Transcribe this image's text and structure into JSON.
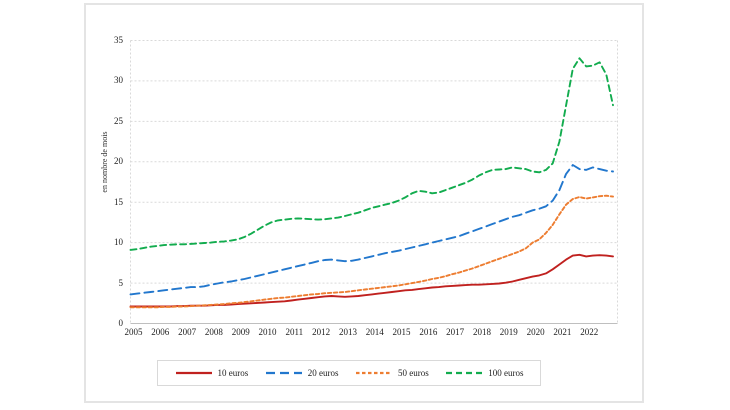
{
  "figure": {
    "ylabel": "en nombre de mois",
    "colors": {
      "grid": "#d9d9d9",
      "axis": "#bfbfbf",
      "panel_border": "#e4e4e4",
      "text": "#222222"
    }
  },
  "chart_data": {
    "type": "line",
    "title": "",
    "xlabel": "",
    "ylabel": "en nombre de mois",
    "ylim": [
      0,
      35
    ],
    "yticks": [
      0,
      5,
      10,
      15,
      20,
      25,
      30,
      35
    ],
    "x_tick_labels": [
      "2005",
      "2006",
      "2007",
      "2008",
      "2009",
      "2010",
      "2011",
      "2012",
      "2013",
      "2014",
      "2015",
      "2016",
      "2017",
      "2018",
      "2019",
      "2020",
      "2021",
      "2022"
    ],
    "x_start": 2005,
    "x_step_years": 0.25,
    "x_end": 2023,
    "grid": "horizontal-dashed",
    "legend_position": "bottom-box",
    "series": [
      {
        "name": "10 euros",
        "color": "#c0211f",
        "dash": "solid",
        "values": [
          2.1,
          2.1,
          2.1,
          2.1,
          2.1,
          2.1,
          2.1,
          2.15,
          2.15,
          2.2,
          2.2,
          2.2,
          2.25,
          2.3,
          2.3,
          2.35,
          2.4,
          2.45,
          2.5,
          2.55,
          2.6,
          2.65,
          2.7,
          2.75,
          2.85,
          2.95,
          3.05,
          3.15,
          3.25,
          3.35,
          3.4,
          3.35,
          3.3,
          3.35,
          3.4,
          3.5,
          3.6,
          3.7,
          3.8,
          3.9,
          4.0,
          4.1,
          4.15,
          4.25,
          4.35,
          4.45,
          4.5,
          4.6,
          4.65,
          4.7,
          4.75,
          4.8,
          4.8,
          4.85,
          4.9,
          4.95,
          5.05,
          5.2,
          5.4,
          5.6,
          5.8,
          5.95,
          6.2,
          6.7,
          7.3,
          7.9,
          8.4,
          8.5,
          8.3,
          8.4,
          8.45,
          8.4,
          8.3
        ]
      },
      {
        "name": "20 euros",
        "color": "#2277cd",
        "dash": "long-dash",
        "values": [
          3.6,
          3.7,
          3.8,
          3.9,
          4.0,
          4.1,
          4.2,
          4.3,
          4.4,
          4.5,
          4.5,
          4.6,
          4.8,
          4.95,
          5.1,
          5.2,
          5.35,
          5.5,
          5.7,
          5.9,
          6.1,
          6.3,
          6.5,
          6.7,
          6.9,
          7.1,
          7.3,
          7.5,
          7.7,
          7.85,
          7.9,
          7.8,
          7.7,
          7.75,
          7.9,
          8.1,
          8.3,
          8.5,
          8.7,
          8.85,
          9.0,
          9.2,
          9.4,
          9.6,
          9.8,
          10.0,
          10.2,
          10.4,
          10.6,
          10.8,
          11.1,
          11.4,
          11.7,
          12.0,
          12.3,
          12.6,
          12.9,
          13.2,
          13.4,
          13.7,
          14.0,
          14.2,
          14.5,
          15.2,
          16.5,
          18.5,
          19.6,
          19.1,
          19.0,
          19.3,
          19.1,
          18.9,
          18.8
        ]
      },
      {
        "name": "50 euros",
        "color": "#ed7d31",
        "dash": "short-dash",
        "values": [
          2.0,
          2.0,
          2.0,
          2.0,
          2.0,
          2.05,
          2.05,
          2.1,
          2.1,
          2.15,
          2.2,
          2.25,
          2.3,
          2.35,
          2.4,
          2.5,
          2.55,
          2.65,
          2.75,
          2.85,
          2.95,
          3.05,
          3.15,
          3.2,
          3.3,
          3.4,
          3.5,
          3.6,
          3.65,
          3.75,
          3.8,
          3.85,
          3.9,
          4.0,
          4.1,
          4.2,
          4.3,
          4.4,
          4.5,
          4.6,
          4.7,
          4.85,
          5.0,
          5.15,
          5.3,
          5.5,
          5.65,
          5.85,
          6.1,
          6.3,
          6.55,
          6.8,
          7.1,
          7.4,
          7.7,
          8.0,
          8.3,
          8.6,
          8.9,
          9.3,
          10.0,
          10.4,
          11.2,
          12.2,
          13.5,
          14.7,
          15.4,
          15.65,
          15.45,
          15.6,
          15.75,
          15.8,
          15.7
        ]
      },
      {
        "name": "100 euros",
        "color": "#12ac4e",
        "dash": "medium-dash",
        "values": [
          9.1,
          9.2,
          9.35,
          9.5,
          9.6,
          9.7,
          9.75,
          9.8,
          9.8,
          9.85,
          9.9,
          9.95,
          10.0,
          10.1,
          10.15,
          10.25,
          10.4,
          10.7,
          11.1,
          11.6,
          12.1,
          12.5,
          12.75,
          12.85,
          12.95,
          13.0,
          12.95,
          12.9,
          12.85,
          12.9,
          13.0,
          13.1,
          13.3,
          13.5,
          13.7,
          14.0,
          14.3,
          14.5,
          14.7,
          14.9,
          15.2,
          15.6,
          16.1,
          16.4,
          16.3,
          16.1,
          16.2,
          16.5,
          16.8,
          17.1,
          17.4,
          17.8,
          18.3,
          18.7,
          19.0,
          19.05,
          19.1,
          19.3,
          19.2,
          19.1,
          18.8,
          18.7,
          19.0,
          19.8,
          22.5,
          27.0,
          31.5,
          32.8,
          31.8,
          31.9,
          32.3,
          30.8,
          27.0
        ]
      }
    ]
  }
}
